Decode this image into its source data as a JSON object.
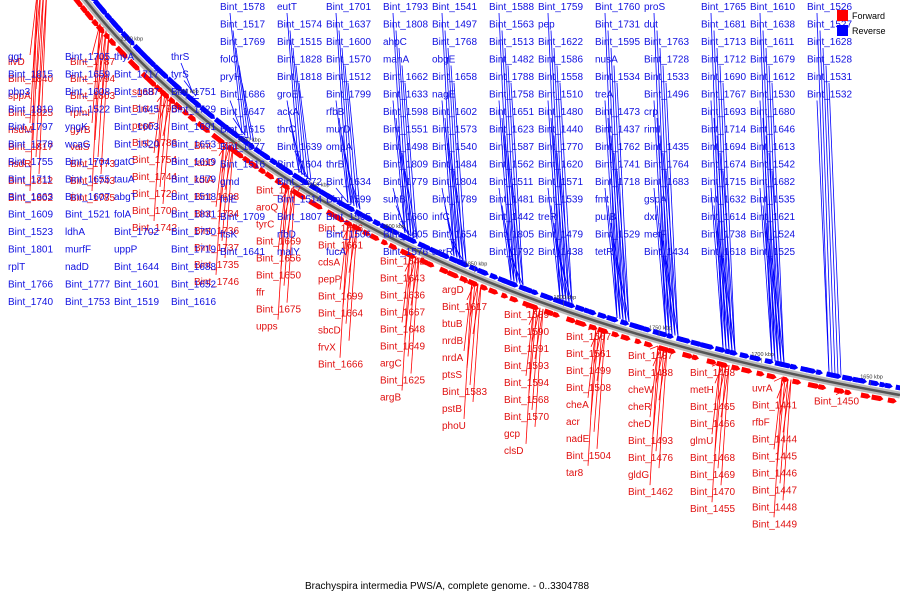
{
  "caption": "Brachyspira intermedia PWS/A, complete genome. - 0..3304788",
  "legend": [
    {
      "label": "Forward",
      "color": "#ff0000"
    },
    {
      "label": "Reverse",
      "color": "#0000ff"
    }
  ],
  "scale_ticks": [
    "2100 kbp",
    "2050 kbp",
    "2000 kbp",
    "1950 kbp",
    "1900 kbp",
    "1850 kbp",
    "1800 kbp",
    "1750 kbp",
    "1700 kbp",
    "1650 kbp"
  ],
  "forward_labels": [
    "livD",
    "Bint_1840",
    "sppA",
    "Bint_1825",
    "hsdM",
    "Bint_1817",
    "hsdR",
    "Bint_1812",
    "Bint_1802",
    "Bint_1787",
    "Bint_1794",
    "Bint_1803",
    "rpmI",
    "gyrB",
    "valS",
    "Bint_1773",
    "Bint_1743",
    "Bint_1785",
    "sgaB",
    "Bint_1795",
    "pepF",
    "Bint_1786",
    "Bint_1754",
    "Bint_1744",
    "Bint_1720",
    "Bint_1700",
    "Bint_1742",
    "Bint_1721",
    "fabD",
    "kdtA",
    "Bint_1698",
    "Bint_1734",
    "Bint_1736",
    "Bint_1737",
    "Bint_1735",
    "Bint_1746",
    "Bint_1747",
    "aroQ",
    "tyrC",
    "Bint_1669",
    "Bint_1656",
    "Bint_1650",
    "ffr",
    "Bint_1675",
    "upps",
    "Bint_1676",
    "Bint_1661",
    "cdsA",
    "pepP",
    "Bint_1699",
    "Bint_1664",
    "sbcD",
    "frvX",
    "Bint_1666",
    "Bint_1642",
    "Bint_1643",
    "Bint_1636",
    "Bint_1667",
    "Bint_1648",
    "Bint_1649",
    "argC",
    "Bint_1625",
    "argB",
    "argD",
    "Bint_1617",
    "btuB",
    "nrdB",
    "nrdA",
    "ptsS",
    "Bint_1583",
    "pstB",
    "phoU",
    "Bint_1589",
    "Bint_1590",
    "Bint_1591",
    "Bint_1593",
    "Bint_1594",
    "Bint_1568",
    "Bint_1570",
    "gcp",
    "clsD",
    "Bint_1567",
    "Bint_1561",
    "Bint_1499",
    "Bint_1508",
    "cheA",
    "acr",
    "nadE",
    "Bint_1504",
    "tar8",
    "Bint_1487",
    "Bint_1488",
    "cheW",
    "cheR",
    "cheD",
    "Bint_1493",
    "Bint_1476",
    "gldG",
    "Bint_1462",
    "Bint_1458",
    "metH",
    "Bint_1465",
    "Bint_1466",
    "glmU",
    "Bint_1468",
    "Bint_1469",
    "Bint_1470",
    "Bint_1455",
    "uvrA",
    "Bint_1441",
    "rfbF",
    "Bint_1444",
    "Bint_1445",
    "Bint_1446",
    "Bint_1447",
    "Bint_1448",
    "Bint_1449",
    "Bint_1450"
  ],
  "reverse_labels": [
    "ggt",
    "Bint_1815",
    "pbp3",
    "Bint_1810",
    "Bint_1797",
    "Bint_1778",
    "Bint_1755",
    "Bint_1711",
    "Bint_1663",
    "Bint_1609",
    "Bint_1523",
    "Bint_1801",
    "rplT",
    "Bint_1766",
    "Bint_1740",
    "Bint_1705",
    "Bint_1659",
    "Bint_1608",
    "Bint_1522",
    "yngK",
    "wcaG",
    "Bint_1704",
    "Bint_1655",
    "Bint_1607",
    "Bint_1521",
    "ldhA",
    "murfF",
    "nadD",
    "Bint_1777",
    "Bint_1753",
    "thyA",
    "Bint_1717",
    "Bint_1687",
    "Bint_1645",
    "Bint_1603",
    "Bint_1520",
    "gatC",
    "tauA",
    "abgT",
    "folA",
    "Bint_1702",
    "uppP",
    "Bint_1644",
    "Bint_1601",
    "Bint_1519",
    "thrS",
    "tyrS",
    "Bint_1751",
    "Bint_1729",
    "Bint_1691",
    "Bint_1653",
    "Bint_1619",
    "Bint_1579",
    "Bint_1518",
    "Bint_1831",
    "Bint_1750",
    "Bint_1719",
    "Bint_1688",
    "Bint_1652",
    "Bint_1616",
    "Bint_1578",
    "Bint_1517",
    "Bint_1769",
    "folC",
    "pryH",
    "Bint_1686",
    "Bint_1647",
    "Bint_1615",
    "Bint_1577",
    "Bint_1516",
    "gmd",
    "folE",
    "Bint_1709",
    "ftsK",
    "Bint_1641",
    "eutT",
    "Bint_1574",
    "Bint_1515",
    "Bint_1828",
    "Bint_1818",
    "groEL",
    "ackA",
    "thrC",
    "Bint_1639",
    "Bint_1604",
    "Bint_1572",
    "Bint_1514",
    "Bint_1807",
    "rfbD",
    "malY",
    "Bint_1701",
    "Bint_1637",
    "Bint_1600",
    "Bint_1570",
    "Bint_1512",
    "Bint_1799",
    "rfbB",
    "murD",
    "ompA",
    "thrB",
    "Bint_1634",
    "Bint_1599",
    "Bint_1565",
    "Bint_1506",
    "fucA",
    "Bint_1793",
    "Bint_1808",
    "ahpC",
    "manA",
    "Bint_1662",
    "Bint_1633",
    "Bint_1598",
    "Bint_1551",
    "Bint_1498",
    "Bint_1809",
    "Bint_1779",
    "suhB",
    "Bint_1660",
    "Bint_1605",
    "Bint_1576",
    "Bint_1541",
    "Bint_1497",
    "Bint_1768",
    "obgE",
    "Bint_1658",
    "nagE",
    "Bint_1602",
    "Bint_1573",
    "Bint_1540",
    "Bint_1484",
    "Bint_1804",
    "Bint_1789",
    "infC",
    "Bint_1654",
    "acrR",
    "Bint_1588",
    "Bint_1563",
    "Bint_1513",
    "Bint_1482",
    "Bint_1788",
    "Bint_1758",
    "Bint_1651",
    "Bint_1623",
    "Bint_1587",
    "Bint_1562",
    "Bint_1511",
    "Bint_1481",
    "Bint_1442",
    "Bint_1805",
    "Bint_1792",
    "Bint_1759",
    "pep",
    "Bint_1622",
    "Bint_1586",
    "Bint_1558",
    "Bint_1510",
    "Bint_1480",
    "Bint_1440",
    "Bint_1770",
    "Bint_1620",
    "Bint_1571",
    "Bint_1539",
    "treR",
    "Bint_1479",
    "Bint_1438",
    "Bint_1760",
    "Bint_1731",
    "Bint_1595",
    "nusA",
    "Bint_1534",
    "treA",
    "Bint_1473",
    "Bint_1437",
    "Bint_1762",
    "Bint_1741",
    "Bint_1718",
    "fmt",
    "purB",
    "Bint_1529",
    "tetR",
    "proS",
    "dut",
    "Bint_1763",
    "Bint_1728",
    "Bint_1533",
    "Bint_1496",
    "crp",
    "rimI",
    "Bint_1435",
    "Bint_1764",
    "Bint_1683",
    "gspA",
    "dxr",
    "metF",
    "Bint_1434",
    "Bint_1765",
    "Bint_1681",
    "Bint_1713",
    "Bint_1712",
    "Bint_1690",
    "Bint_1767",
    "Bint_1693",
    "Bint_1714",
    "Bint_1694",
    "Bint_1674",
    "Bint_1715",
    "Bint_1632",
    "Bint_1614",
    "Bint_1738",
    "Bint_1618",
    "Bint_1610",
    "Bint_1638",
    "Bint_1611",
    "Bint_1679",
    "Bint_1612",
    "Bint_1530",
    "Bint_1680",
    "Bint_1646",
    "Bint_1613",
    "Bint_1542",
    "Bint_1682",
    "Bint_1535",
    "Bint_1621",
    "Bint_1524",
    "Bint_1525",
    "Bint_1526",
    "Bint_1527",
    "Bint_1628",
    "Bint_1528",
    "Bint_1531",
    "Bint_1532"
  ]
}
